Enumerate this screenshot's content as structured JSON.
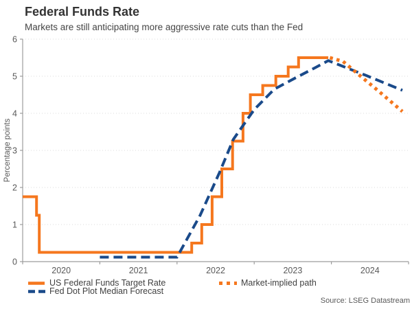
{
  "header": {
    "title": "Federal Funds Rate",
    "subtitle": "Markets are still anticipating more aggressive rate cuts than the Fed"
  },
  "source": {
    "text": "Source: LSEG Datastream"
  },
  "colors": {
    "orange": "#F5771E",
    "navy": "#1A4A8A",
    "axis": "#9C9C9C",
    "grid": "#DBDBDB",
    "tick_text": "#595959"
  },
  "chart_data": {
    "type": "line",
    "title": "Federal Funds Rate",
    "subtitle": "Markets are still anticipating more aggressive rate cuts than the Fed",
    "xlabel": "",
    "ylabel": "Percentage points",
    "ylim": [
      0,
      6
    ],
    "yticks": [
      0,
      1,
      2,
      3,
      4,
      5,
      6
    ],
    "xlim": [
      2020,
      2025
    ],
    "xticks": [
      2020,
      2021,
      2022,
      2023,
      2024,
      2025
    ],
    "xtick_labels": [
      {
        "label": "2020",
        "t": 2020.5
      },
      {
        "label": "2021",
        "t": 2021.5
      },
      {
        "label": "2022",
        "t": 2022.5
      },
      {
        "label": "2023",
        "t": 2023.5
      },
      {
        "label": "2024",
        "t": 2024.5
      }
    ],
    "grid": "horizontal-dotted",
    "legend_position": "bottom",
    "series": [
      {
        "name": "US Federal Funds Target Rate",
        "style": "solid",
        "color_key": "orange",
        "points": [
          [
            2020.0,
            1.75
          ],
          [
            2020.18,
            1.75
          ],
          [
            2020.18,
            1.25
          ],
          [
            2020.215,
            1.25
          ],
          [
            2020.215,
            0.25
          ],
          [
            2022.19,
            0.25
          ],
          [
            2022.19,
            0.5
          ],
          [
            2022.32,
            0.5
          ],
          [
            2022.32,
            1.0
          ],
          [
            2022.455,
            1.0
          ],
          [
            2022.455,
            1.75
          ],
          [
            2022.58,
            1.75
          ],
          [
            2022.58,
            2.5
          ],
          [
            2022.72,
            2.5
          ],
          [
            2022.72,
            3.25
          ],
          [
            2022.855,
            3.25
          ],
          [
            2022.855,
            4.0
          ],
          [
            2022.95,
            4.0
          ],
          [
            2022.95,
            4.5
          ],
          [
            2023.11,
            4.5
          ],
          [
            2023.11,
            4.75
          ],
          [
            2023.28,
            4.75
          ],
          [
            2023.28,
            5.0
          ],
          [
            2023.44,
            5.0
          ],
          [
            2023.44,
            5.25
          ],
          [
            2023.575,
            5.25
          ],
          [
            2023.575,
            5.5
          ],
          [
            2023.96,
            5.5
          ]
        ]
      },
      {
        "name": "Fed Dot Plot Median Forecast",
        "style": "dashed",
        "color_key": "navy",
        "points": [
          [
            2021.0,
            0.12
          ],
          [
            2022.0,
            0.12
          ],
          [
            2022.3,
            1.25
          ],
          [
            2022.55,
            2.4
          ],
          [
            2022.73,
            3.3
          ],
          [
            2023.0,
            4.1
          ],
          [
            2023.26,
            4.65
          ],
          [
            2023.53,
            4.95
          ],
          [
            2023.8,
            5.24
          ],
          [
            2023.96,
            5.42
          ],
          [
            2024.45,
            5.02
          ],
          [
            2024.92,
            4.62
          ]
        ]
      },
      {
        "name": "Market-implied path",
        "style": "dotted",
        "color_key": "orange",
        "points": [
          [
            2023.98,
            5.5
          ],
          [
            2024.15,
            5.4
          ],
          [
            2024.35,
            5.05
          ],
          [
            2024.6,
            4.62
          ],
          [
            2024.92,
            4.05
          ]
        ]
      }
    ]
  }
}
